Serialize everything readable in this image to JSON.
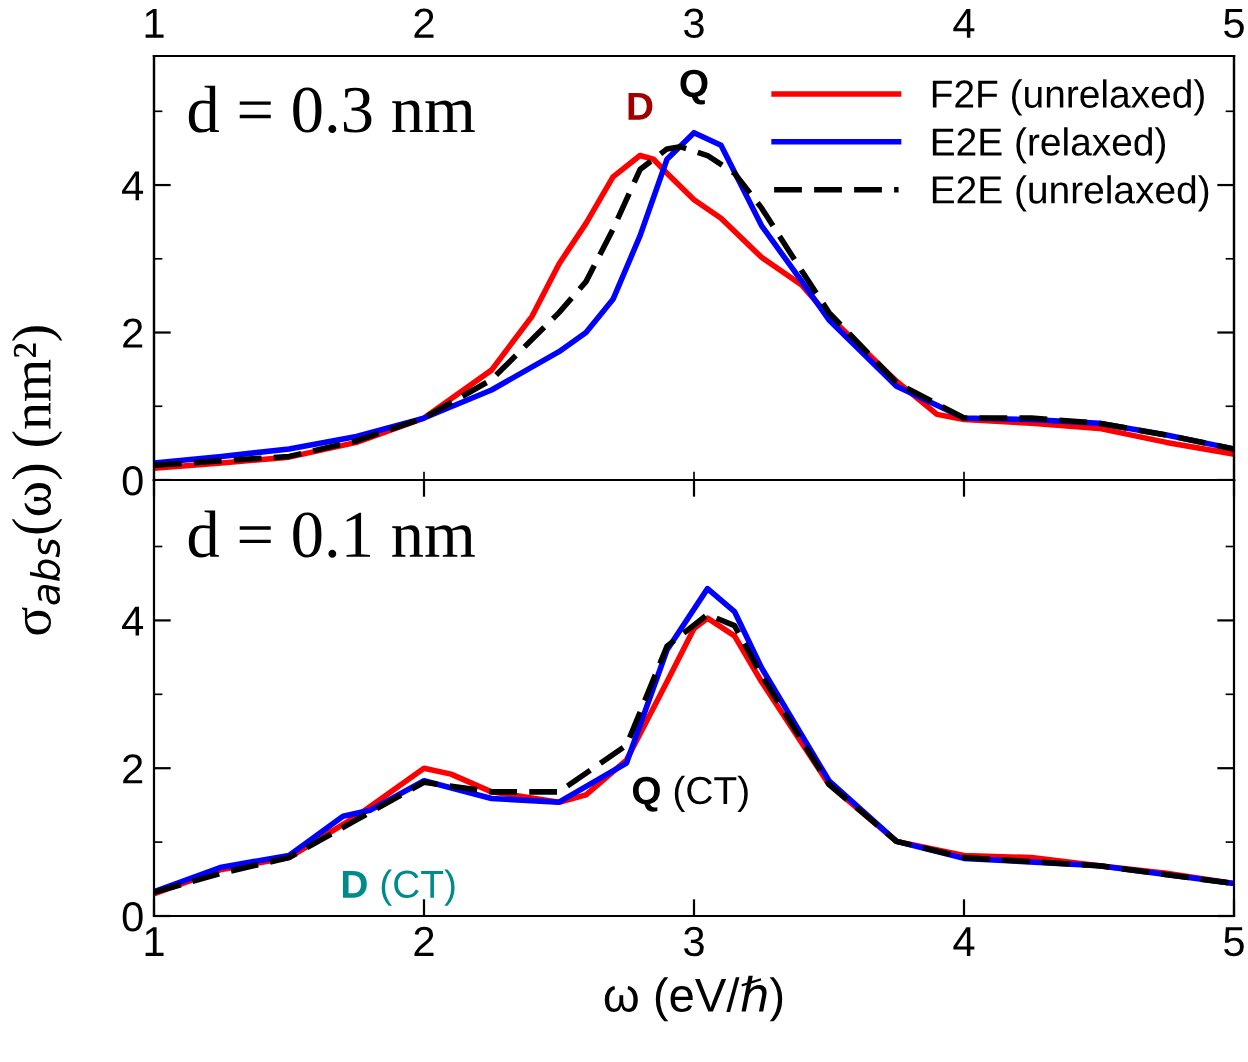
{
  "chart_data": [
    {
      "type": "line",
      "ylabel": "σ$_{abs}$(ω) (nm²)",
      "legend": "top right",
      "grid": false,
      "tick_labels": "y",
      "xlim": [
        1,
        5
      ],
      "x2lim": [
        1,
        5
      ],
      "x2ticks": [
        1,
        2,
        3,
        4,
        5
      ],
      "ylim": [
        0,
        5.75
      ],
      "xticks": [
        {
          "value": 1,
          "label": null
        },
        {
          "value": 2,
          "label": null
        },
        {
          "value": 3,
          "label": null
        },
        {
          "value": 4,
          "label": null
        },
        {
          "value": 5,
          "label": null
        }
      ],
      "yticks": [
        0,
        {
          "value": 1,
          "label": null
        },
        2,
        {
          "value": 3,
          "label": null
        },
        4,
        {
          "value": 5,
          "label": null
        }
      ],
      "series": [
        {
          "name": "F2F (unrelaxed)",
          "color": "#ff0000",
          "line_style": "solid",
          "x": [
            1,
            1.25,
            1.5,
            1.75,
            2,
            2.25,
            2.4,
            2.5,
            2.6,
            2.7,
            2.8,
            2.85,
            2.9,
            3,
            3.1,
            3.25,
            3.4,
            3.5,
            3.75,
            3.9,
            4,
            4.25,
            4.5,
            4.75,
            5
          ],
          "values": [
            0.16,
            0.23,
            0.31,
            0.51,
            0.84,
            1.49,
            2.22,
            2.93,
            3.48,
            4.11,
            4.4,
            4.35,
            4.16,
            3.8,
            3.55,
            3.02,
            2.64,
            2.22,
            1.34,
            0.89,
            0.82,
            0.77,
            0.7,
            0.51,
            0.35
          ]
        },
        {
          "name": "E2E (relaxed)",
          "color": "#0000ff",
          "line_style": "solid",
          "x": [
            1,
            1.25,
            1.5,
            1.75,
            2,
            2.25,
            2.5,
            2.6,
            2.7,
            2.8,
            2.9,
            3,
            3.1,
            3.25,
            3.4,
            3.5,
            3.75,
            4,
            4.25,
            4.5,
            4.75,
            5
          ],
          "values": [
            0.23,
            0.32,
            0.42,
            0.59,
            0.84,
            1.22,
            1.74,
            2.0,
            2.45,
            3.31,
            4.35,
            4.71,
            4.54,
            3.45,
            2.69,
            2.17,
            1.27,
            0.84,
            0.82,
            0.77,
            0.61,
            0.42
          ]
        },
        {
          "name": "E2E (unrelaxed)",
          "color": "#000000",
          "line_style": "dashed",
          "x": [
            1,
            1.5,
            1.75,
            2,
            2.25,
            2.5,
            2.6,
            2.7,
            2.8,
            2.9,
            2.95,
            3.05,
            3.15,
            3.25,
            3.4,
            3.5,
            3.75,
            4,
            4.25,
            4.5,
            4.75,
            5
          ],
          "values": [
            0.2,
            0.32,
            0.53,
            0.84,
            1.36,
            2.27,
            2.69,
            3.4,
            4.21,
            4.49,
            4.52,
            4.4,
            4.16,
            3.69,
            2.83,
            2.27,
            1.32,
            0.84,
            0.84,
            0.77,
            0.61,
            0.42
          ]
        }
      ],
      "annotations": [
        "d = 0.3 nm",
        {
          "text": "D",
          "x": 2.8,
          "y": 4.4
        },
        {
          "text": "Q",
          "x": 3.0,
          "y": 4.71
        }
      ]
    },
    {
      "type": "line",
      "xlabel": "ω (eV/ℏ)",
      "grid": false,
      "xlim": [
        1,
        5
      ],
      "xticks": [
        1,
        2,
        3,
        4,
        5
      ],
      "ylim": [
        0,
        5.9
      ],
      "yticks": [
        0,
        {
          "value": 1,
          "label": null
        },
        2,
        {
          "value": 3,
          "label": null
        },
        4,
        {
          "value": 5,
          "label": null
        }
      ],
      "series": [
        {
          "color": "#ff0000",
          "line_style": "solid",
          "x": [
            1,
            1.25,
            1.5,
            1.75,
            2,
            2.1,
            2.25,
            2.5,
            2.6,
            2.75,
            2.9,
            3,
            3.05,
            3.15,
            3.25,
            3.5,
            3.75,
            4,
            4.25,
            4.5,
            4.75,
            5
          ],
          "values": [
            0.3,
            0.63,
            0.79,
            1.35,
            2.0,
            1.92,
            1.68,
            1.54,
            1.64,
            2.11,
            3.17,
            3.89,
            4.03,
            3.79,
            3.17,
            1.78,
            1.01,
            0.82,
            0.79,
            0.68,
            0.58,
            0.44
          ]
        },
        {
          "color": "#0000ff",
          "line_style": "solid",
          "x": [
            1,
            1.25,
            1.5,
            1.7,
            1.8,
            2,
            2.25,
            2.5,
            2.75,
            2.9,
            3.05,
            3.15,
            3.25,
            3.5,
            3.75,
            4,
            4.5,
            5
          ],
          "values": [
            0.33,
            0.66,
            0.82,
            1.35,
            1.43,
            1.83,
            1.59,
            1.54,
            2.07,
            3.6,
            4.43,
            4.12,
            3.36,
            1.83,
            1.01,
            0.78,
            0.68,
            0.44
          ]
        },
        {
          "color": "#000000",
          "line_style": "dashed",
          "x": [
            1,
            1.25,
            1.5,
            1.75,
            2,
            2.25,
            2.5,
            2.75,
            2.9,
            3.05,
            3.15,
            3.25,
            3.5,
            3.75,
            4,
            4.5,
            5
          ],
          "values": [
            0.32,
            0.58,
            0.79,
            1.3,
            1.81,
            1.68,
            1.68,
            2.31,
            3.65,
            4.08,
            3.93,
            3.26,
            1.78,
            1.01,
            0.79,
            0.68,
            0.44
          ]
        }
      ],
      "annotations": [
        "d = 0.1 nm",
        {
          "text": "D (CT)",
          "x": 2.0,
          "y": 1.83
        },
        "Q (CT)"
      ]
    }
  ]
}
